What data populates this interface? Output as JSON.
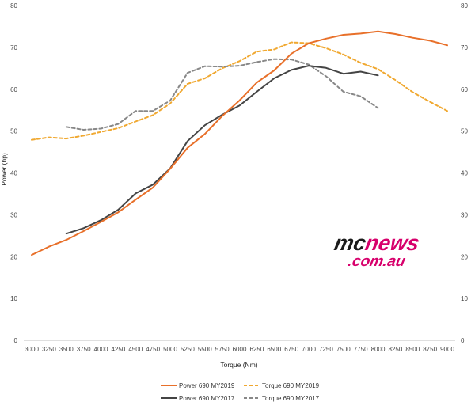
{
  "chart_data": {
    "type": "line",
    "xlabel": "Torque (Nm)",
    "ylabel": "Power (hp)",
    "ylim": [
      0,
      80
    ],
    "xlim": [
      3000,
      9000
    ],
    "grid": false,
    "legend_position": "bottom",
    "x_ticks": [
      "3000",
      "3250",
      "3500",
      "3750",
      "4000",
      "4250",
      "4500",
      "4750",
      "5000",
      "5250",
      "5500",
      "5750",
      "6000",
      "6250",
      "6500",
      "6750",
      "7000",
      "7250",
      "7500",
      "7750",
      "8000",
      "8250",
      "8500",
      "8750",
      "9000"
    ],
    "y_ticks_left": [
      "0",
      "10",
      "20",
      "30",
      "40",
      "50",
      "60",
      "70",
      "80"
    ],
    "y_ticks_right": [
      "0",
      "10",
      "20",
      "30",
      "40",
      "50",
      "60",
      "70",
      "80"
    ],
    "series": [
      {
        "name": "Power 690 MY2019",
        "color": "#e8702a",
        "dash": "solid",
        "x": [
          3000,
          3250,
          3500,
          3750,
          4000,
          4250,
          4500,
          4750,
          5000,
          5250,
          5500,
          5750,
          6000,
          6250,
          6500,
          6750,
          7000,
          7250,
          7500,
          7750,
          8000,
          8250,
          8500,
          8750,
          9000
        ],
        "values": [
          20.4,
          22.4,
          24.0,
          26.1,
          28.3,
          30.6,
          33.6,
          36.5,
          41.0,
          46.0,
          49.3,
          53.6,
          57.3,
          61.6,
          64.5,
          68.5,
          71.0,
          72.1,
          73.0,
          73.3,
          73.8,
          73.2,
          72.3,
          71.6,
          70.5
        ]
      },
      {
        "name": "Torque 690 MY2019",
        "color": "#f0a830",
        "dash": "dashed",
        "x": [
          3000,
          3250,
          3500,
          3750,
          4000,
          4250,
          4500,
          4750,
          5000,
          5250,
          5500,
          5750,
          6000,
          6250,
          6500,
          6750,
          7000,
          7250,
          7500,
          7750,
          8000,
          8250,
          8500,
          8750,
          9000
        ],
        "values": [
          47.9,
          48.5,
          48.2,
          48.9,
          49.8,
          50.7,
          52.3,
          53.8,
          56.6,
          61.3,
          62.6,
          65.0,
          66.7,
          69.0,
          69.5,
          71.2,
          71.0,
          69.8,
          68.3,
          66.3,
          64.8,
          62.2,
          59.3,
          57.0,
          54.8
        ]
      },
      {
        "name": "Power 690 MY2017",
        "color": "#444444",
        "dash": "solid",
        "x": [
          3500,
          3750,
          4000,
          4250,
          4500,
          4750,
          5000,
          5250,
          5500,
          5750,
          6000,
          6250,
          6500,
          6750,
          7000,
          7250,
          7500,
          7750,
          8000
        ],
        "values": [
          25.5,
          26.8,
          28.7,
          31.2,
          35.1,
          37.2,
          41.1,
          47.6,
          51.4,
          53.9,
          56.1,
          59.4,
          62.6,
          64.6,
          65.6,
          65.1,
          63.7,
          64.2,
          63.3
        ]
      },
      {
        "name": "Torque 690 MY2017",
        "color": "#888888",
        "dash": "dashed",
        "x": [
          3500,
          3750,
          4000,
          4250,
          4500,
          4750,
          5000,
          5250,
          5500,
          5750,
          6000,
          6250,
          6500,
          6750,
          7000,
          7250,
          7500,
          7750,
          8000
        ],
        "values": [
          51.0,
          50.3,
          50.6,
          51.7,
          54.8,
          54.8,
          57.3,
          63.9,
          65.5,
          65.4,
          65.6,
          66.5,
          67.2,
          67.1,
          65.9,
          63.1,
          59.4,
          58.3,
          55.5
        ]
      }
    ]
  },
  "watermark": {
    "line1": "mcnews",
    "line2": ".com.au",
    "colors": {
      "mc": "#1b1b1b",
      "news": "#d7006c",
      "outline": "#ffffff"
    }
  },
  "colors": {
    "axis": "#bfbfbf",
    "background": "#ffffff"
  }
}
